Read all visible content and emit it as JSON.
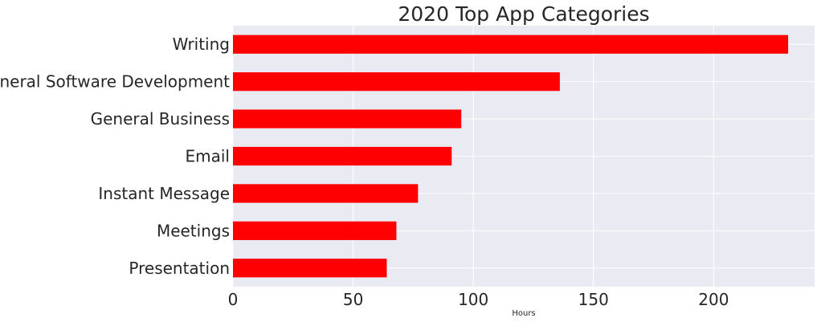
{
  "chart_data": {
    "type": "bar",
    "orientation": "horizontal",
    "title": "2020 Top App Categories",
    "xlabel": "Hours",
    "ylabel": "",
    "categories": [
      "Presentation",
      "Meetings",
      "Instant Message",
      "Email",
      "General Business",
      "General Software Development",
      "Writing"
    ],
    "values": [
      64,
      68,
      77,
      91,
      95,
      136,
      231
    ],
    "xlim": [
      0,
      242
    ],
    "xticks": [
      "0",
      "50",
      "100",
      "150",
      "200"
    ],
    "xtick_values": [
      0,
      50,
      100,
      150,
      200
    ],
    "grid": true,
    "bar_color": "#ff0000",
    "background_color": "#eaeaf2",
    "grid_color": "#ffffff"
  }
}
